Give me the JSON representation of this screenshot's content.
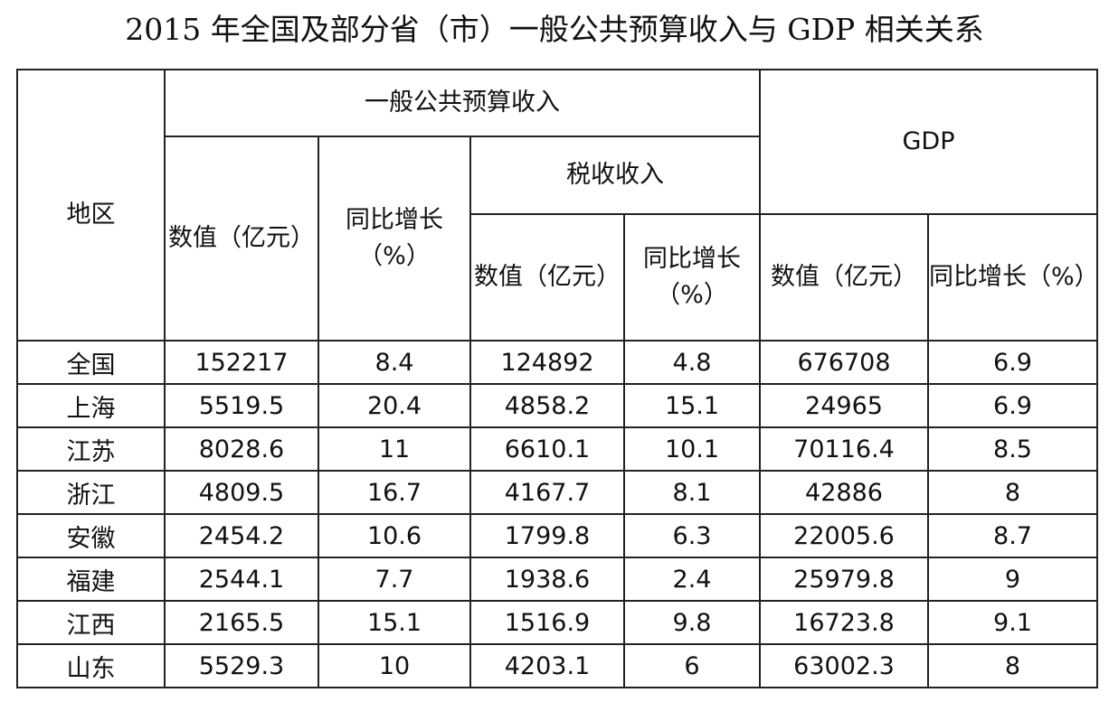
{
  "title": "2015 年全国及部分省（市）一般公共预算收入与 GDP 相关关系",
  "table": {
    "region_header": "地区",
    "budget_group": "一般公共预算收入",
    "tax_group": "税收收入",
    "gdp_group": "GDP",
    "sub": {
      "budget_value": "数值（亿元）",
      "budget_growth": "同比增长（%）",
      "tax_value": "数值（亿元）",
      "tax_growth": "同比增长（%）",
      "gdp_value": "数值（亿元）",
      "gdp_growth": "同比增长（%）"
    },
    "rows": [
      {
        "region": "全国",
        "budget_value": "152217",
        "budget_growth": "8.4",
        "tax_value": "124892",
        "tax_growth": "4.8",
        "gdp_value": "676708",
        "gdp_growth": "6.9"
      },
      {
        "region": "上海",
        "budget_value": "5519.5",
        "budget_growth": "20.4",
        "tax_value": "4858.2",
        "tax_growth": "15.1",
        "gdp_value": "24965",
        "gdp_growth": "6.9"
      },
      {
        "region": "江苏",
        "budget_value": "8028.6",
        "budget_growth": "11",
        "tax_value": "6610.1",
        "tax_growth": "10.1",
        "gdp_value": "70116.4",
        "gdp_growth": "8.5"
      },
      {
        "region": "浙江",
        "budget_value": "4809.5",
        "budget_growth": "16.7",
        "tax_value": "4167.7",
        "tax_growth": "8.1",
        "gdp_value": "42886",
        "gdp_growth": "8"
      },
      {
        "region": "安徽",
        "budget_value": "2454.2",
        "budget_growth": "10.6",
        "tax_value": "1799.8",
        "tax_growth": "6.3",
        "gdp_value": "22005.6",
        "gdp_growth": "8.7"
      },
      {
        "region": "福建",
        "budget_value": "2544.1",
        "budget_growth": "7.7",
        "tax_value": "1938.6",
        "tax_growth": "2.4",
        "gdp_value": "25979.8",
        "gdp_growth": "9"
      },
      {
        "region": "江西",
        "budget_value": "2165.5",
        "budget_growth": "15.1",
        "tax_value": "1516.9",
        "tax_growth": "9.8",
        "gdp_value": "16723.8",
        "gdp_growth": "9.1"
      },
      {
        "region": "山东",
        "budget_value": "5529.3",
        "budget_growth": "10",
        "tax_value": "4203.1",
        "tax_growth": "6",
        "gdp_value": "63002.3",
        "gdp_growth": "8"
      }
    ]
  }
}
